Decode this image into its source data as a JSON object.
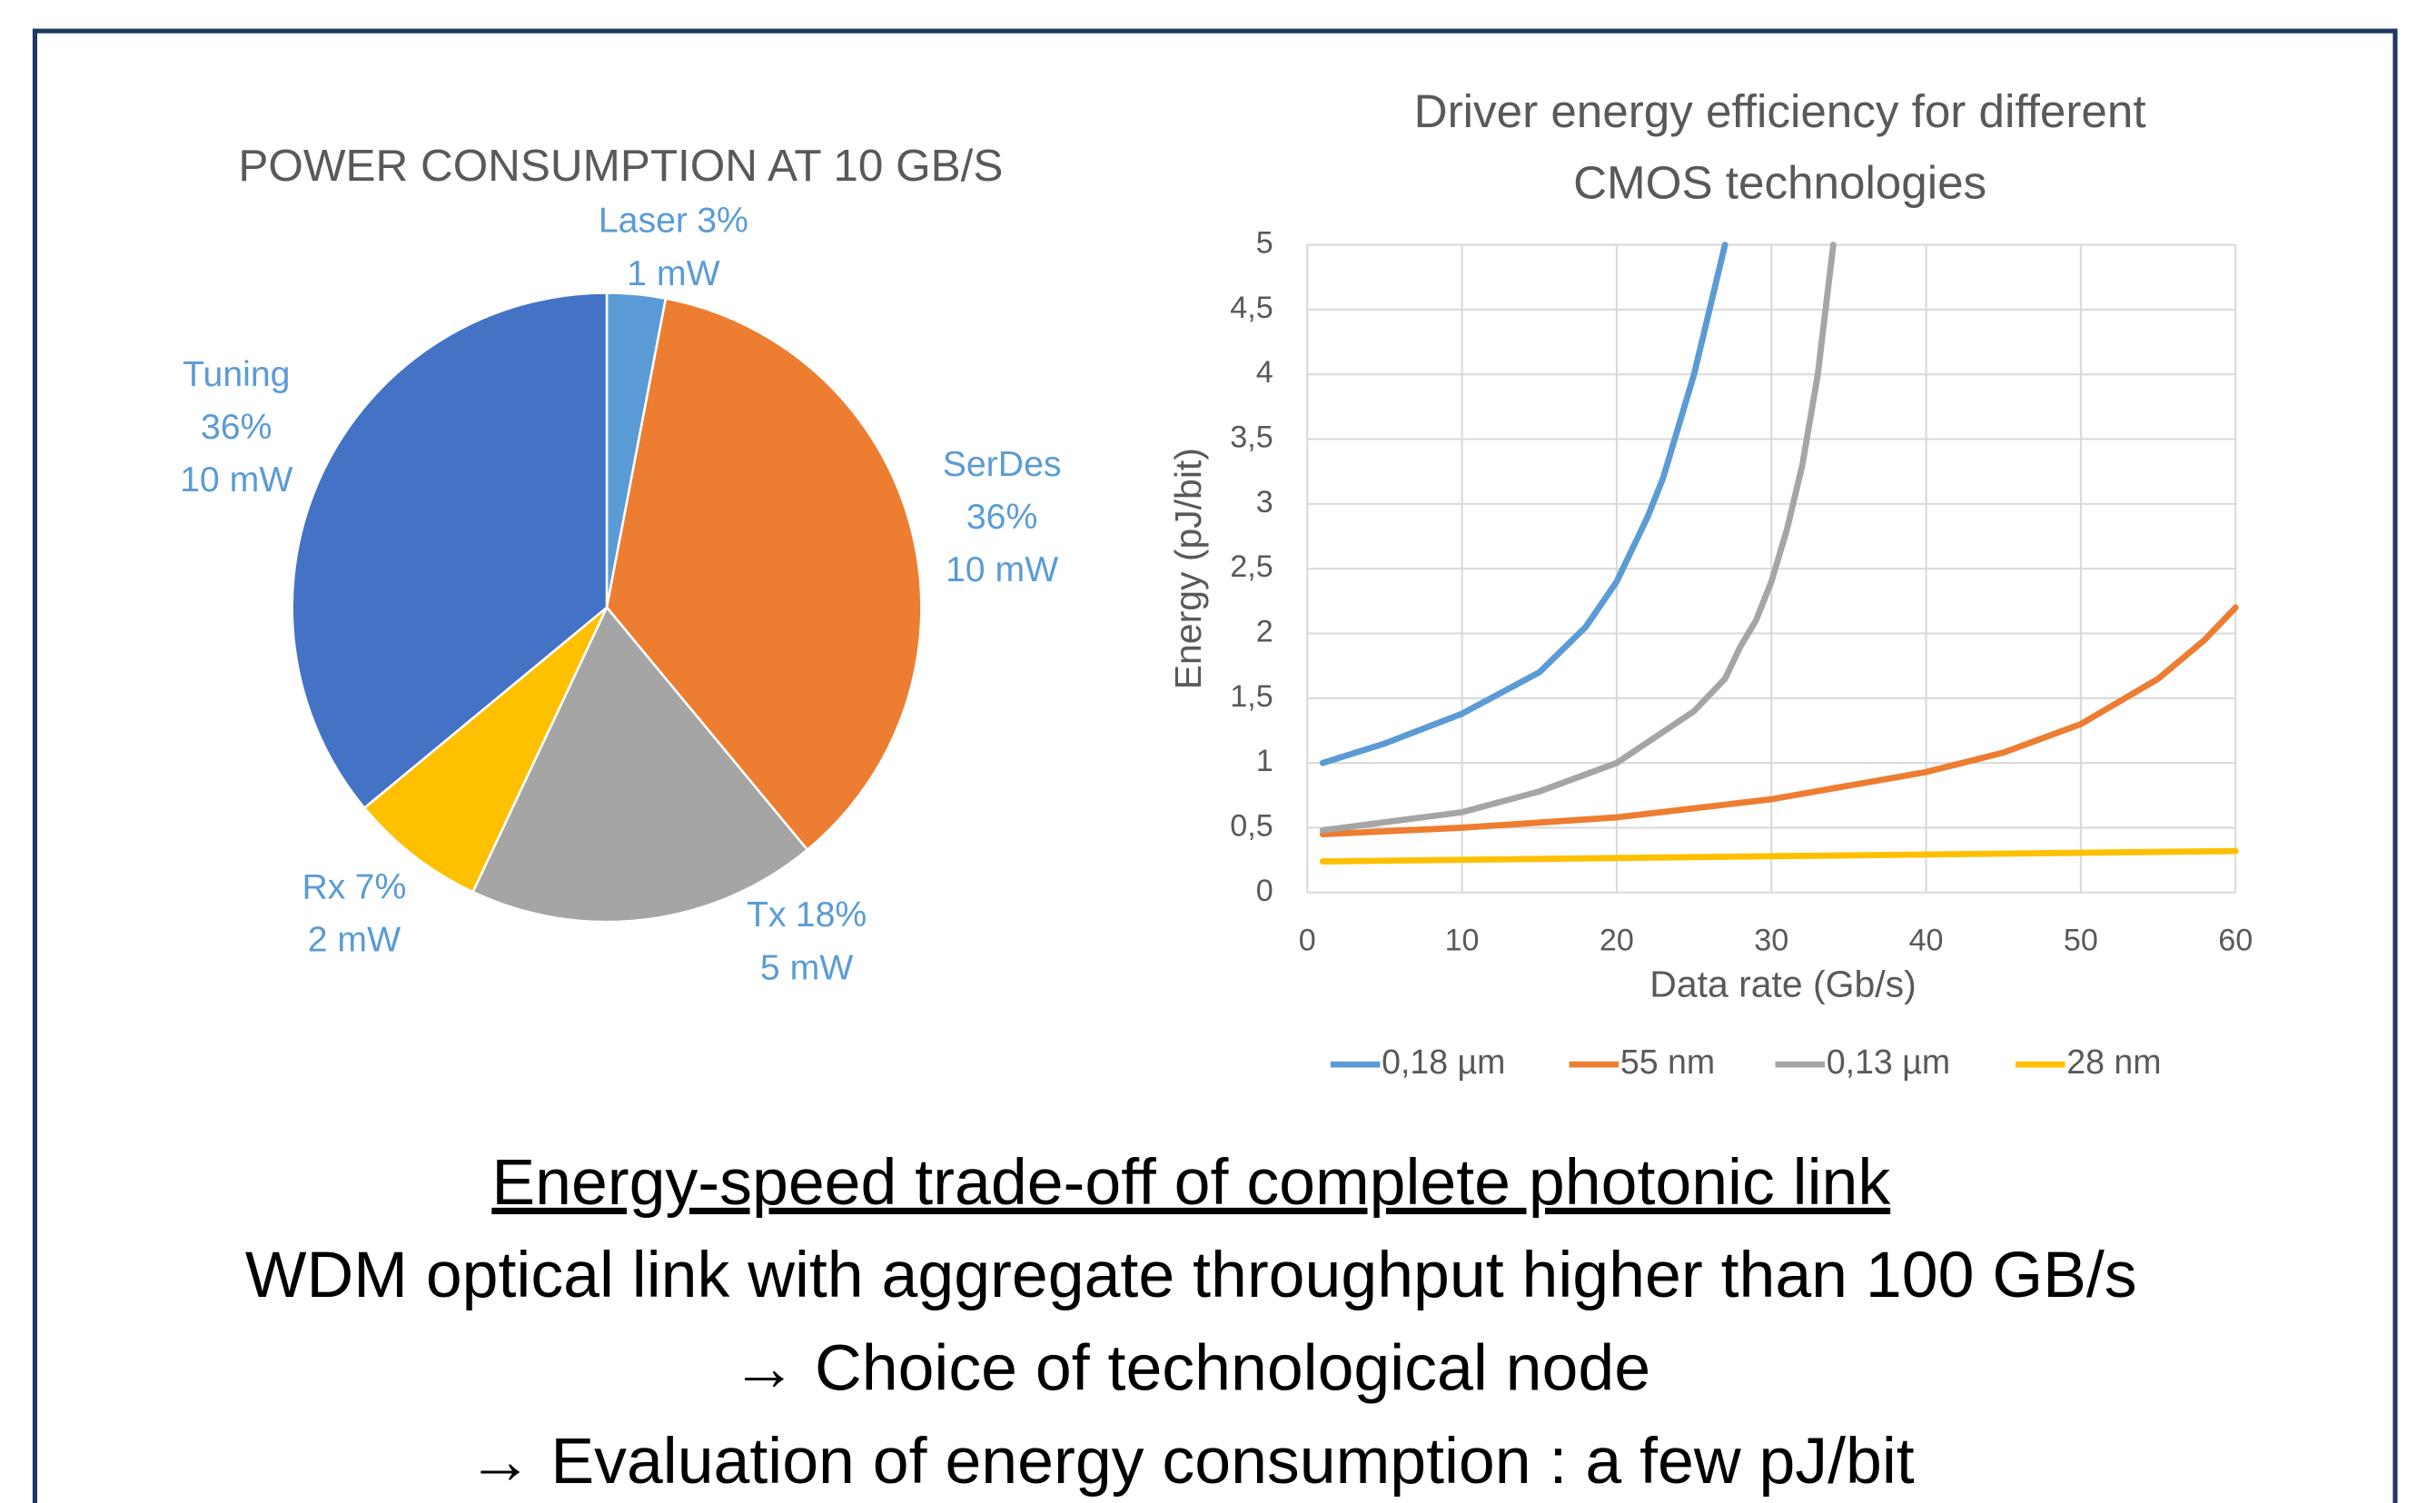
{
  "chart_data": [
    {
      "type": "pie",
      "title": "POWER CONSUMPTION AT 10 GB/S",
      "categories": [
        "Laser",
        "SerDes",
        "Tx",
        "Rx",
        "Tuning"
      ],
      "values": [
        3,
        36,
        18,
        7,
        36
      ],
      "value_labels": [
        "3%",
        "36%",
        "18%",
        "7%",
        "36%"
      ],
      "power_labels": [
        "1 mW",
        "10 mW",
        "5 mW",
        "2 mW",
        "10 mW"
      ],
      "colors": [
        "#5b9bd5",
        "#ed7d31",
        "#a5a5a5",
        "#ffc000",
        "#4472c4"
      ]
    },
    {
      "type": "line",
      "title": [
        "Driver energy efficiency for different",
        "CMOS technologies"
      ],
      "xlabel": "Data rate (Gb/s)",
      "ylabel": "Energy (pJ/bit)",
      "xlim": [
        0,
        60
      ],
      "ylim": [
        0,
        5
      ],
      "xticks": [
        0,
        10,
        20,
        30,
        40,
        50,
        60
      ],
      "yticks": [
        0,
        {
          "value": 0.5,
          "label": "0,5"
        },
        1,
        {
          "value": 1.5,
          "label": "1,5"
        },
        2,
        {
          "value": 2.5,
          "label": "2,5"
        },
        3,
        {
          "value": 3.5,
          "label": "3,5"
        },
        4,
        {
          "value": 4.5,
          "label": "4,5"
        },
        5
      ],
      "grid": true,
      "legend": "bottom",
      "series": [
        {
          "name": "0,18 µm",
          "color": "#5b9bd5",
          "x": [
            1,
            5,
            10,
            15,
            18,
            20,
            22,
            23,
            24,
            25,
            26,
            27
          ],
          "values": [
            1.0,
            1.15,
            1.38,
            1.7,
            2.05,
            2.4,
            2.9,
            3.2,
            3.6,
            4.0,
            4.5,
            5.0
          ]
        },
        {
          "name": "55 nm",
          "color": "#ed7d31",
          "x": [
            1,
            10,
            20,
            30,
            40,
            45,
            50,
            55,
            58,
            60
          ],
          "values": [
            0.45,
            0.5,
            0.58,
            0.72,
            0.93,
            1.08,
            1.3,
            1.65,
            1.95,
            2.2
          ]
        },
        {
          "name": "0,13 µm",
          "color": "#a5a5a5",
          "x": [
            1,
            10,
            15,
            20,
            25,
            27,
            28,
            29,
            30,
            31,
            32,
            33,
            33.5,
            34
          ],
          "values": [
            0.48,
            0.62,
            0.78,
            1.0,
            1.4,
            1.65,
            1.9,
            2.1,
            2.4,
            2.8,
            3.3,
            4.0,
            4.5,
            5.0
          ]
        },
        {
          "name": "28 nm",
          "color": "#ffc000",
          "x": [
            1,
            30,
            60
          ],
          "values": [
            0.24,
            0.28,
            0.32
          ]
        }
      ]
    }
  ],
  "caption": {
    "heading": "Energy-speed trade-off of complete photonic link",
    "lines": [
      "WDM optical link with aggregate throughput higher than 100 GB/s",
      "→ Choice of technological node",
      "→ Evaluation of energy consumption : a few pJ/bit"
    ]
  }
}
